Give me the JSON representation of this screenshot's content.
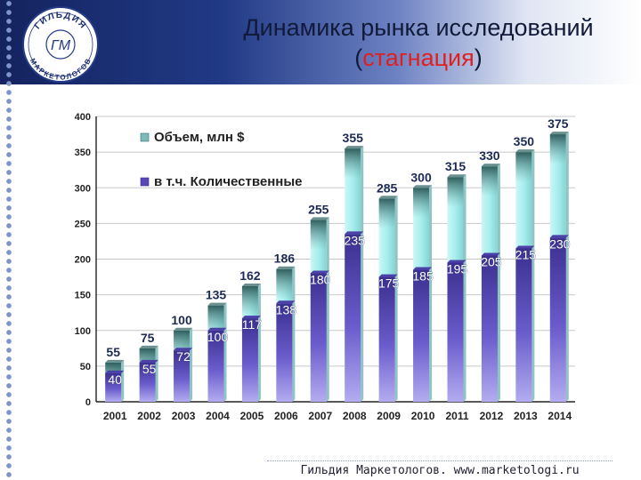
{
  "header": {
    "title_line1": "Динамика рынка исследований",
    "title_paren_open": "(",
    "title_highlight": "стагнация",
    "title_paren_close": ")"
  },
  "logo": {
    "top_text": "ГИЛЬДИЯ",
    "bottom_text": "МАРКЕТОЛОГОВ",
    "monogram": "ГМ"
  },
  "footer": {
    "text": "Гильдия Маркетологов. www.marketologi.ru"
  },
  "colors": {
    "total_series": "#a9f0f0",
    "total_top": "#35706f",
    "quant_series": "#5848b5",
    "quant_light": "#a9a4ec",
    "highlight": "#e02020"
  },
  "chart_data": {
    "type": "bar",
    "categories": [
      "2001",
      "2002",
      "2003",
      "2004",
      "2005",
      "2006",
      "2007",
      "2008",
      "2009",
      "2010",
      "2011",
      "2012",
      "2013",
      "2014"
    ],
    "series": [
      {
        "name": "Объем, млн $",
        "values": [
          55,
          75,
          100,
          135,
          162,
          186,
          255,
          355,
          285,
          300,
          315,
          330,
          350,
          375
        ]
      },
      {
        "name": "в т.ч. Количественные",
        "values": [
          40,
          55,
          72,
          100,
          117,
          138,
          180,
          235,
          175,
          185,
          195,
          205,
          215,
          230
        ]
      }
    ],
    "ylim": [
      0,
      400
    ],
    "yticks": [
      0,
      50,
      100,
      150,
      200,
      250,
      300,
      350,
      400
    ],
    "grid": true,
    "legend_position": "top-left",
    "overlapping": true
  }
}
